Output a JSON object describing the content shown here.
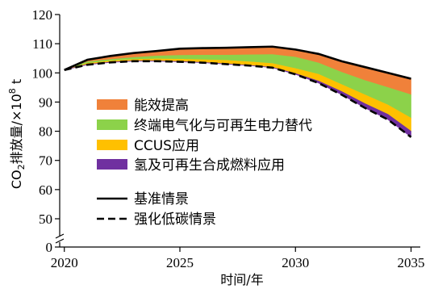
{
  "chart_data": {
    "type": "area",
    "x": [
      2020,
      2021,
      2022,
      2023,
      2024,
      2025,
      2026,
      2027,
      2028,
      2029,
      2030,
      2031,
      2032,
      2033,
      2034,
      2035
    ],
    "xlabel": "时间/年",
    "ylabel_parts": {
      "pre": "CO",
      "sub": "2",
      "mid": "排放量/×10",
      "sup": "8",
      "post": " t"
    },
    "xlim": [
      2019.8,
      2035.4
    ],
    "ylim": [
      0,
      120
    ],
    "x_ticks": [
      2020,
      2025,
      2030,
      2035
    ],
    "y_ticks": [
      0,
      50,
      60,
      70,
      80,
      90,
      100,
      110,
      120
    ],
    "y_break": {
      "from": 0,
      "to": 45
    },
    "grid": false,
    "legend_position": "center-left",
    "baseline": {
      "name": "基准情景",
      "values": [
        101,
        104.5,
        105.8,
        106.8,
        107.5,
        108.3,
        108.5,
        108.6,
        108.8,
        109,
        108,
        106.5,
        104,
        102,
        100,
        98
      ],
      "style": "solid"
    },
    "low_carbon": {
      "name": "强化低碳情景",
      "values": [
        101,
        102.8,
        103.6,
        104,
        104,
        103.8,
        103.5,
        103,
        102.5,
        101.8,
        99.5,
        96.5,
        92.5,
        88,
        84,
        78
      ],
      "style": "dashed"
    },
    "bands": [
      {
        "name": "能效提高",
        "color": "#F0813A",
        "lower": [
          101,
          103.8,
          104.6,
          105.3,
          105.8,
          106,
          106.1,
          106.1,
          106.2,
          106.3,
          105.4,
          103.4,
          100.2,
          97.4,
          95,
          92.5
        ],
        "upper": [
          101,
          104.5,
          105.8,
          106.8,
          107.5,
          108.3,
          108.5,
          108.6,
          108.8,
          109,
          108,
          106.5,
          104,
          102,
          100,
          98
        ]
      },
      {
        "name": "终端电气化与可再生电力替代",
        "color": "#8CD24A",
        "lower": [
          101,
          103.3,
          104.1,
          104.6,
          104.8,
          104.7,
          104.5,
          104.3,
          103.8,
          103.2,
          101.5,
          99.5,
          96,
          92.5,
          89,
          84.5
        ],
        "upper": [
          101,
          103.8,
          104.6,
          105.3,
          105.8,
          106,
          106.1,
          106.1,
          106.2,
          106.3,
          105.4,
          103.4,
          100.2,
          97.4,
          95,
          92.5
        ]
      },
      {
        "name": "CCUS应用",
        "color": "#FFC000",
        "lower": [
          101,
          102.9,
          103.7,
          104.1,
          104.1,
          103.9,
          103.6,
          103.1,
          102.6,
          101.9,
          99.8,
          97.2,
          93.6,
          89.5,
          85.8,
          80
        ],
        "upper": [
          101,
          103.3,
          104.1,
          104.6,
          104.8,
          104.7,
          104.5,
          104.3,
          103.8,
          103.2,
          101.5,
          99.5,
          96,
          92.5,
          89,
          84.5
        ]
      },
      {
        "name": "氢及可再生合成燃料应用",
        "color": "#7030A0",
        "lower": [
          101,
          102.8,
          103.6,
          104,
          104,
          103.8,
          103.5,
          103,
          102.5,
          101.8,
          99.5,
          96.5,
          92.5,
          88,
          84,
          78
        ],
        "upper": [
          101,
          102.9,
          103.7,
          104.1,
          104.1,
          103.9,
          103.6,
          103.1,
          102.6,
          101.9,
          99.8,
          97.2,
          93.6,
          89.5,
          85.8,
          80
        ]
      }
    ]
  }
}
